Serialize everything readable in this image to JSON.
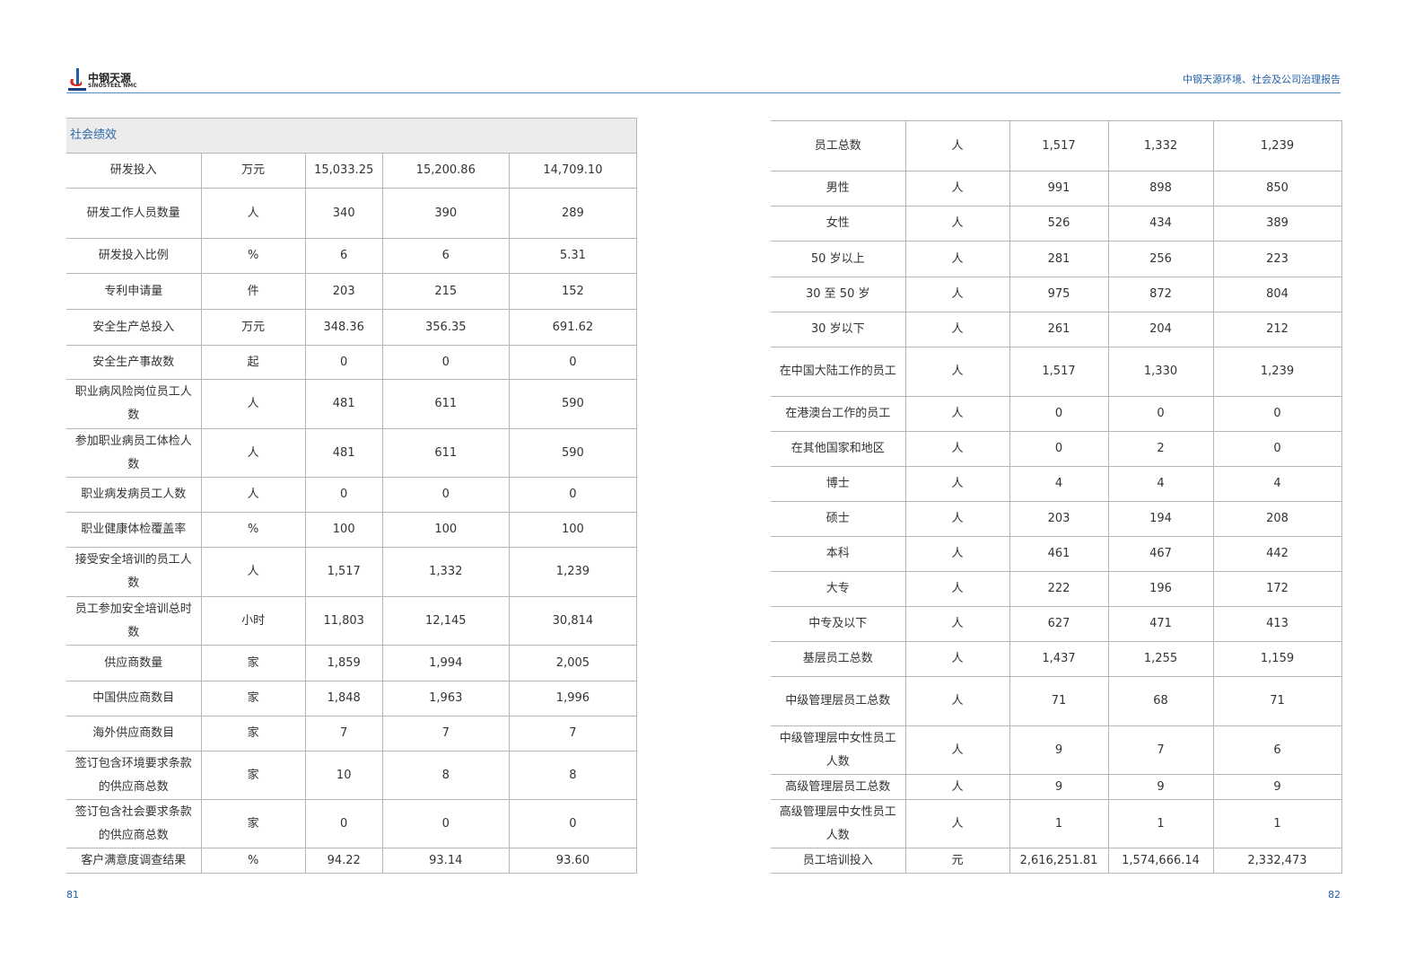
{
  "header": {
    "logo_cn": "中钢天源",
    "logo_en": "SINOSTEEL NMC",
    "report_title": "中钢天源环境、社会及公司治理报告"
  },
  "left": {
    "section_title": "社会绩效",
    "page_number": "81",
    "rows": [
      [
        "研发投入",
        "万元",
        "15,033.25",
        "15,200.86",
        "14,709.10"
      ],
      [
        "研发工作人员数量",
        "人",
        "340",
        "390",
        "289"
      ],
      [
        "研发投入比例",
        "%",
        "6",
        "6",
        "5.31"
      ],
      [
        "专利申请量",
        "件",
        "203",
        "215",
        "152"
      ],
      [
        "安全生产总投入",
        "万元",
        "348.36",
        "356.35",
        "691.62"
      ],
      [
        "安全生产事故数",
        "起",
        "0",
        "0",
        "0"
      ],
      [
        "职业病风险岗位员工人数",
        "人",
        "481",
        "611",
        "590"
      ],
      [
        "参加职业病员工体检人数",
        "人",
        "481",
        "611",
        "590"
      ],
      [
        "职业病发病员工人数",
        "人",
        "0",
        "0",
        "0"
      ],
      [
        "职业健康体检覆盖率",
        "%",
        "100",
        "100",
        "100"
      ],
      [
        "接受安全培训的员工人数",
        "人",
        "1,517",
        "1,332",
        "1,239"
      ],
      [
        "员工参加安全培训总时数",
        "小时",
        "11,803",
        "12,145",
        "30,814"
      ],
      [
        "供应商数量",
        "家",
        "1,859",
        "1,994",
        "2,005"
      ],
      [
        "中国供应商数目",
        "家",
        "1,848",
        "1,963",
        "1,996"
      ],
      [
        "海外供应商数目",
        "家",
        "7",
        "7",
        "7"
      ],
      [
        "签订包含环境要求条款的供应商总数",
        "家",
        "10",
        "8",
        "8"
      ],
      [
        "签订包含社会要求条款的供应商总数",
        "家",
        "0",
        "0",
        "0"
      ],
      [
        "客户满意度调查结果",
        "%",
        "94.22",
        "93.14",
        "93.60"
      ]
    ]
  },
  "right": {
    "page_number": "82",
    "rows": [
      [
        "员工总数",
        "人",
        "1,517",
        "1,332",
        "1,239"
      ],
      [
        "男性",
        "人",
        "991",
        "898",
        "850"
      ],
      [
        "女性",
        "人",
        "526",
        "434",
        "389"
      ],
      [
        "50 岁以上",
        "人",
        "281",
        "256",
        "223"
      ],
      [
        "30 至 50 岁",
        "人",
        "975",
        "872",
        "804"
      ],
      [
        "30 岁以下",
        "人",
        "261",
        "204",
        "212"
      ],
      [
        "在中国大陆工作的员工",
        "人",
        "1,517",
        "1,330",
        "1,239"
      ],
      [
        "在港澳台工作的员工",
        "人",
        "0",
        "0",
        "0"
      ],
      [
        "在其他国家和地区",
        "人",
        "0",
        "2",
        "0"
      ],
      [
        "博士",
        "人",
        "4",
        "4",
        "4"
      ],
      [
        "硕士",
        "人",
        "203",
        "194",
        "208"
      ],
      [
        "本科",
        "人",
        "461",
        "467",
        "442"
      ],
      [
        "大专",
        "人",
        "222",
        "196",
        "172"
      ],
      [
        "中专及以下",
        "人",
        "627",
        "471",
        "413"
      ],
      [
        "基层员工总数",
        "人",
        "1,437",
        "1,255",
        "1,159"
      ],
      [
        "中级管理层员工总数",
        "人",
        "71",
        "68",
        "71"
      ],
      [
        "中级管理层中女性员工人数",
        "人",
        "9",
        "7",
        "6"
      ],
      [
        "高级管理层员工总数",
        "人",
        "9",
        "9",
        "9"
      ],
      [
        "高级管理层中女性员工人数",
        "人",
        "1",
        "1",
        "1"
      ],
      [
        "员工培训投入",
        "元",
        "2,616,251.81",
        "1,574,666.14",
        "2,332,473"
      ]
    ]
  }
}
